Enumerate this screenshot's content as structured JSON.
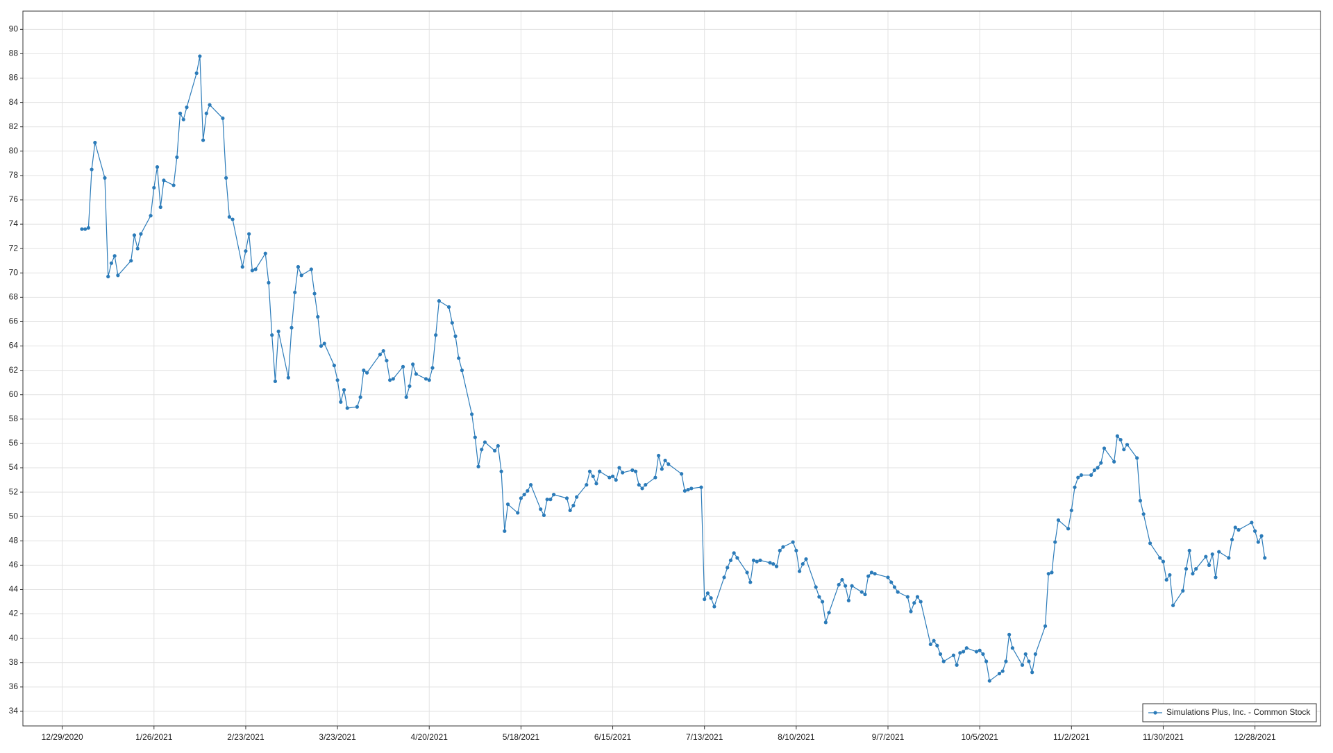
{
  "chart_data": {
    "type": "line",
    "x": [
      "2021-01-04",
      "2021-01-05",
      "2021-01-06",
      "2021-01-07",
      "2021-01-08",
      "2021-01-11",
      "2021-01-12",
      "2021-01-13",
      "2021-01-14",
      "2021-01-15",
      "2021-01-19",
      "2021-01-20",
      "2021-01-21",
      "2021-01-22",
      "2021-01-25",
      "2021-01-26",
      "2021-01-27",
      "2021-01-28",
      "2021-01-29",
      "2021-02-01",
      "2021-02-02",
      "2021-02-03",
      "2021-02-04",
      "2021-02-05",
      "2021-02-08",
      "2021-02-09",
      "2021-02-10",
      "2021-02-11",
      "2021-02-12",
      "2021-02-16",
      "2021-02-17",
      "2021-02-18",
      "2021-02-19",
      "2021-02-22",
      "2021-02-23",
      "2021-02-24",
      "2021-02-25",
      "2021-02-26",
      "2021-03-01",
      "2021-03-02",
      "2021-03-03",
      "2021-03-04",
      "2021-03-05",
      "2021-03-08",
      "2021-03-09",
      "2021-03-10",
      "2021-03-11",
      "2021-03-12",
      "2021-03-15",
      "2021-03-16",
      "2021-03-17",
      "2021-03-18",
      "2021-03-19",
      "2021-03-22",
      "2021-03-23",
      "2021-03-24",
      "2021-03-25",
      "2021-03-26",
      "2021-03-29",
      "2021-03-30",
      "2021-03-31",
      "2021-04-01",
      "2021-04-05",
      "2021-04-06",
      "2021-04-07",
      "2021-04-08",
      "2021-04-09",
      "2021-04-12",
      "2021-04-13",
      "2021-04-14",
      "2021-04-15",
      "2021-04-16",
      "2021-04-19",
      "2021-04-20",
      "2021-04-21",
      "2021-04-22",
      "2021-04-23",
      "2021-04-26",
      "2021-04-27",
      "2021-04-28",
      "2021-04-29",
      "2021-04-30",
      "2021-05-03",
      "2021-05-04",
      "2021-05-05",
      "2021-05-06",
      "2021-05-07",
      "2021-05-10",
      "2021-05-11",
      "2021-05-12",
      "2021-05-13",
      "2021-05-14",
      "2021-05-17",
      "2021-05-18",
      "2021-05-19",
      "2021-05-20",
      "2021-05-21",
      "2021-05-24",
      "2021-05-25",
      "2021-05-26",
      "2021-05-27",
      "2021-05-28",
      "2021-06-01",
      "2021-06-02",
      "2021-06-03",
      "2021-06-04",
      "2021-06-07",
      "2021-06-08",
      "2021-06-09",
      "2021-06-10",
      "2021-06-11",
      "2021-06-14",
      "2021-06-15",
      "2021-06-16",
      "2021-06-17",
      "2021-06-18",
      "2021-06-21",
      "2021-06-22",
      "2021-06-23",
      "2021-06-24",
      "2021-06-25",
      "2021-06-28",
      "2021-06-29",
      "2021-06-30",
      "2021-07-01",
      "2021-07-02",
      "2021-07-06",
      "2021-07-07",
      "2021-07-08",
      "2021-07-09",
      "2021-07-12",
      "2021-07-13",
      "2021-07-14",
      "2021-07-15",
      "2021-07-16",
      "2021-07-19",
      "2021-07-20",
      "2021-07-21",
      "2021-07-22",
      "2021-07-23",
      "2021-07-26",
      "2021-07-27",
      "2021-07-28",
      "2021-07-29",
      "2021-07-30",
      "2021-08-02",
      "2021-08-03",
      "2021-08-04",
      "2021-08-05",
      "2021-08-06",
      "2021-08-09",
      "2021-08-10",
      "2021-08-11",
      "2021-08-12",
      "2021-08-13",
      "2021-08-16",
      "2021-08-17",
      "2021-08-18",
      "2021-08-19",
      "2021-08-20",
      "2021-08-23",
      "2021-08-24",
      "2021-08-25",
      "2021-08-26",
      "2021-08-27",
      "2021-08-30",
      "2021-08-31",
      "2021-09-01",
      "2021-09-02",
      "2021-09-03",
      "2021-09-07",
      "2021-09-08",
      "2021-09-09",
      "2021-09-10",
      "2021-09-13",
      "2021-09-14",
      "2021-09-15",
      "2021-09-16",
      "2021-09-17",
      "2021-09-20",
      "2021-09-21",
      "2021-09-22",
      "2021-09-23",
      "2021-09-24",
      "2021-09-27",
      "2021-09-28",
      "2021-09-29",
      "2021-09-30",
      "2021-10-01",
      "2021-10-04",
      "2021-10-05",
      "2021-10-06",
      "2021-10-07",
      "2021-10-08",
      "2021-10-11",
      "2021-10-12",
      "2021-10-13",
      "2021-10-14",
      "2021-10-15",
      "2021-10-18",
      "2021-10-19",
      "2021-10-20",
      "2021-10-21",
      "2021-10-22",
      "2021-10-25",
      "2021-10-26",
      "2021-10-27",
      "2021-10-28",
      "2021-10-29",
      "2021-11-01",
      "2021-11-02",
      "2021-11-03",
      "2021-11-04",
      "2021-11-05",
      "2021-11-08",
      "2021-11-09",
      "2021-11-10",
      "2021-11-11",
      "2021-11-12",
      "2021-11-15",
      "2021-11-16",
      "2021-11-17",
      "2021-11-18",
      "2021-11-19",
      "2021-11-22",
      "2021-11-23",
      "2021-11-24",
      "2021-11-26",
      "2021-11-29",
      "2021-11-30",
      "2021-12-01",
      "2021-12-02",
      "2021-12-03",
      "2021-12-06",
      "2021-12-07",
      "2021-12-08",
      "2021-12-09",
      "2021-12-10",
      "2021-12-13",
      "2021-12-14",
      "2021-12-15",
      "2021-12-16",
      "2021-12-17",
      "2021-12-20",
      "2021-12-21",
      "2021-12-22",
      "2021-12-23",
      "2021-12-27",
      "2021-12-28",
      "2021-12-29",
      "2021-12-30",
      "2021-12-31"
    ],
    "series": [
      {
        "name": "Simulations Plus, Inc. - Common Stock",
        "color": "#2b7bb9",
        "values": [
          73.6,
          73.6,
          73.7,
          78.5,
          80.7,
          77.8,
          69.7,
          70.8,
          71.4,
          69.8,
          71,
          73.1,
          72,
          73.2,
          74.7,
          77,
          78.7,
          75.4,
          77.6,
          77.2,
          79.5,
          83.1,
          82.6,
          83.6,
          86.4,
          87.8,
          80.9,
          83.1,
          83.8,
          82.7,
          77.8,
          74.6,
          74.4,
          70.5,
          71.8,
          73.2,
          70.2,
          70.3,
          71.6,
          69.2,
          64.9,
          61.1,
          65.2,
          61.4,
          65.5,
          68.4,
          70.5,
          69.8,
          70.3,
          68.3,
          66.4,
          64,
          64.2,
          62.4,
          61.2,
          59.4,
          60.4,
          58.9,
          59,
          59.8,
          62,
          61.8,
          63.3,
          63.6,
          62.8,
          61.2,
          61.3,
          62.3,
          59.8,
          60.7,
          62.5,
          61.7,
          61.3,
          61.2,
          62.2,
          64.9,
          67.7,
          67.2,
          65.9,
          64.8,
          63,
          62,
          58.4,
          56.5,
          54.1,
          55.5,
          56.1,
          55.4,
          55.8,
          53.7,
          48.8,
          51,
          50.3,
          51.5,
          51.8,
          52.1,
          52.6,
          50.6,
          50.1,
          51.4,
          51.4,
          51.8,
          51.5,
          50.5,
          50.9,
          51.6,
          52.6,
          53.7,
          53.3,
          52.7,
          53.7,
          53.2,
          53.3,
          53,
          54,
          53.6,
          53.8,
          53.7,
          52.6,
          52.3,
          52.6,
          53.2,
          55,
          53.9,
          54.6,
          54.3,
          53.5,
          52.1,
          52.2,
          52.3,
          52.4,
          43.2,
          43.7,
          43.3,
          42.6,
          45,
          45.8,
          46.4,
          47,
          46.6,
          45.4,
          44.6,
          46.4,
          46.3,
          46.4,
          46.2,
          46.1,
          45.9,
          47.2,
          47.5,
          47.9,
          47.2,
          45.5,
          46.1,
          46.5,
          44.2,
          43.4,
          43,
          41.3,
          42.1,
          44.4,
          44.8,
          44.3,
          43.1,
          44.3,
          43.8,
          43.6,
          45.1,
          45.4,
          45.3,
          45,
          44.6,
          44.2,
          43.8,
          43.4,
          42.2,
          42.9,
          43.4,
          43,
          39.5,
          39.8,
          39.4,
          38.7,
          38.1,
          38.6,
          37.8,
          38.8,
          38.9,
          39.2,
          38.9,
          39,
          38.7,
          38.1,
          36.5,
          37.1,
          37.3,
          38.1,
          40.3,
          39.2,
          37.8,
          38.7,
          38.1,
          37.2,
          38.7,
          41,
          45.3,
          45.4,
          47.9,
          49.7,
          49,
          50.5,
          52.4,
          53.2,
          53.4,
          53.4,
          53.8,
          54,
          54.4,
          55.6,
          54.5,
          56.6,
          56.3,
          55.5,
          55.9,
          54.8,
          51.3,
          50.2,
          47.8,
          46.6,
          46.3,
          44.8,
          45.2,
          42.7,
          43.9,
          45.7,
          47.2,
          45.3,
          45.7,
          46.7,
          46,
          46.9,
          45,
          47.1,
          46.6,
          48.1,
          49.1,
          48.9,
          49.5,
          48.8,
          47.9,
          48.4,
          46.6
        ]
      }
    ],
    "xlim": [
      "2020-12-17",
      "2022-01-17"
    ],
    "xticks": [
      {
        "value": "2020-12-29",
        "label": "12/29/2020"
      },
      {
        "value": "2021-01-26",
        "label": "1/26/2021"
      },
      {
        "value": "2021-02-23",
        "label": "2/23/2021"
      },
      {
        "value": "2021-03-23",
        "label": "3/23/2021"
      },
      {
        "value": "2021-04-20",
        "label": "4/20/2021"
      },
      {
        "value": "2021-05-18",
        "label": "5/18/2021"
      },
      {
        "value": "2021-06-15",
        "label": "6/15/2021"
      },
      {
        "value": "2021-07-13",
        "label": "7/13/2021"
      },
      {
        "value": "2021-08-10",
        "label": "8/10/2021"
      },
      {
        "value": "2021-09-07",
        "label": "9/7/2021"
      },
      {
        "value": "2021-10-05",
        "label": "10/5/2021"
      },
      {
        "value": "2021-11-02",
        "label": "11/2/2021"
      },
      {
        "value": "2021-11-30",
        "label": "11/30/2021"
      },
      {
        "value": "2021-12-28",
        "label": "12/28/2021"
      }
    ],
    "ylim": [
      32.8,
      91.5
    ],
    "yticks": [
      34,
      36,
      38,
      40,
      42,
      44,
      46,
      48,
      50,
      52,
      54,
      56,
      58,
      60,
      62,
      64,
      66,
      68,
      70,
      72,
      74,
      76,
      78,
      80,
      82,
      84,
      86,
      88,
      90
    ],
    "grid": true,
    "legend": "bottom-right"
  }
}
